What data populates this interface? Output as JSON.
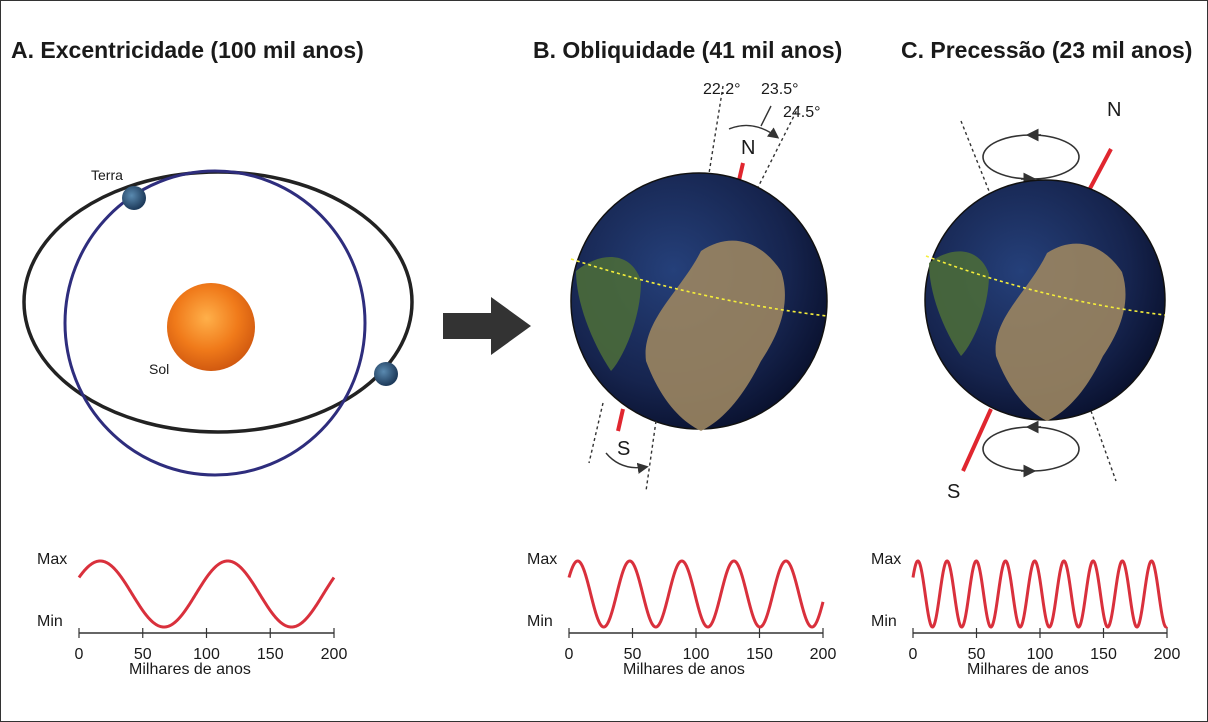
{
  "panels": {
    "a": {
      "title": "A. Excentricidade (100 mil anos)",
      "earth_label": "Terra",
      "sun_label": "Sol"
    },
    "b": {
      "title": "B. Obliquidade (41 mil anos)",
      "angles": [
        "22.2°",
        "23.5°",
        "24.5°"
      ],
      "north": "N",
      "south": "S"
    },
    "c": {
      "title": "C. Precessão (23 mil anos)",
      "north": "N",
      "south": "S"
    }
  },
  "colors": {
    "wave": "#d9303c",
    "axis": "#e0262f",
    "orbit_circle": "#2e2d7d",
    "orbit_ellipse": "#222222",
    "sun": "#f07a1a",
    "ocean": "#16244e"
  },
  "chart_data": [
    {
      "type": "line",
      "ylabel_max": "Max",
      "ylabel_min": "Min",
      "xlabel": "Milhares de anos",
      "xticks": [
        0,
        50,
        100,
        150,
        200
      ],
      "xlim": [
        0,
        200
      ],
      "period": 100
    },
    {
      "type": "line",
      "ylabel_max": "Max",
      "ylabel_min": "Min",
      "xlabel": "Milhares de anos",
      "xticks": [
        0,
        50,
        100,
        150,
        200
      ],
      "xlim": [
        0,
        200
      ],
      "period": 41
    },
    {
      "type": "line",
      "ylabel_max": "Max",
      "ylabel_min": "Min",
      "xlabel": "Milhares de anos",
      "xticks": [
        0,
        50,
        100,
        150,
        200
      ],
      "xlim": [
        0,
        200
      ],
      "period": 23
    }
  ]
}
